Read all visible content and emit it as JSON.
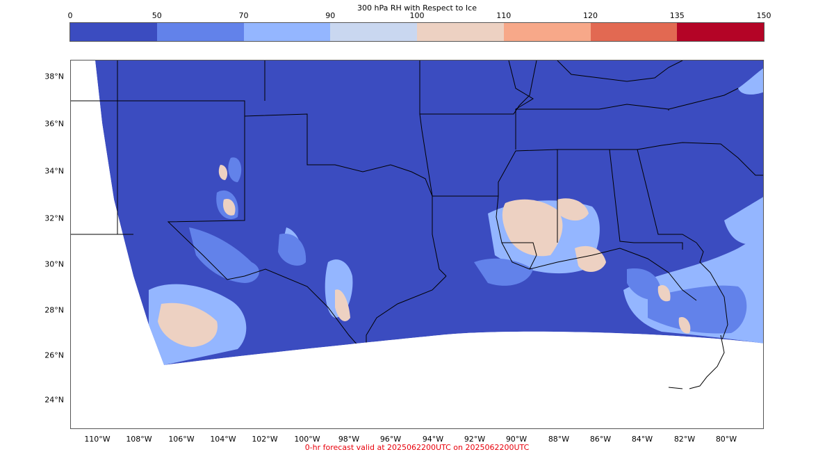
{
  "colorbar": {
    "title": "300 hPa RH with Respect to Ice",
    "ticks": [
      "0",
      "50",
      "70",
      "90",
      "100",
      "110",
      "120",
      "135",
      "150"
    ],
    "colors": [
      "#3b4cc0",
      "#6282ea",
      "#94b6ff",
      "#c9d7f0",
      "#edd1c2",
      "#f7a889",
      "#e26952",
      "#b40426"
    ]
  },
  "map": {
    "lat_labels": [
      "38°N",
      "36°N",
      "34°N",
      "32°N",
      "30°N",
      "28°N",
      "26°N",
      "24°N"
    ],
    "lon_labels": [
      "110°W",
      "108°W",
      "106°W",
      "104°W",
      "102°W",
      "100°W",
      "98°W",
      "96°W",
      "94°W",
      "92°W",
      "90°W",
      "88°W",
      "86°W",
      "84°W",
      "82°W",
      "80°W"
    ],
    "background_color": "#3b4cc0"
  },
  "footer": {
    "text": "0-hr forecast valid at 2025062200UTC on 2025062200UTC",
    "color": "#e8000b"
  }
}
